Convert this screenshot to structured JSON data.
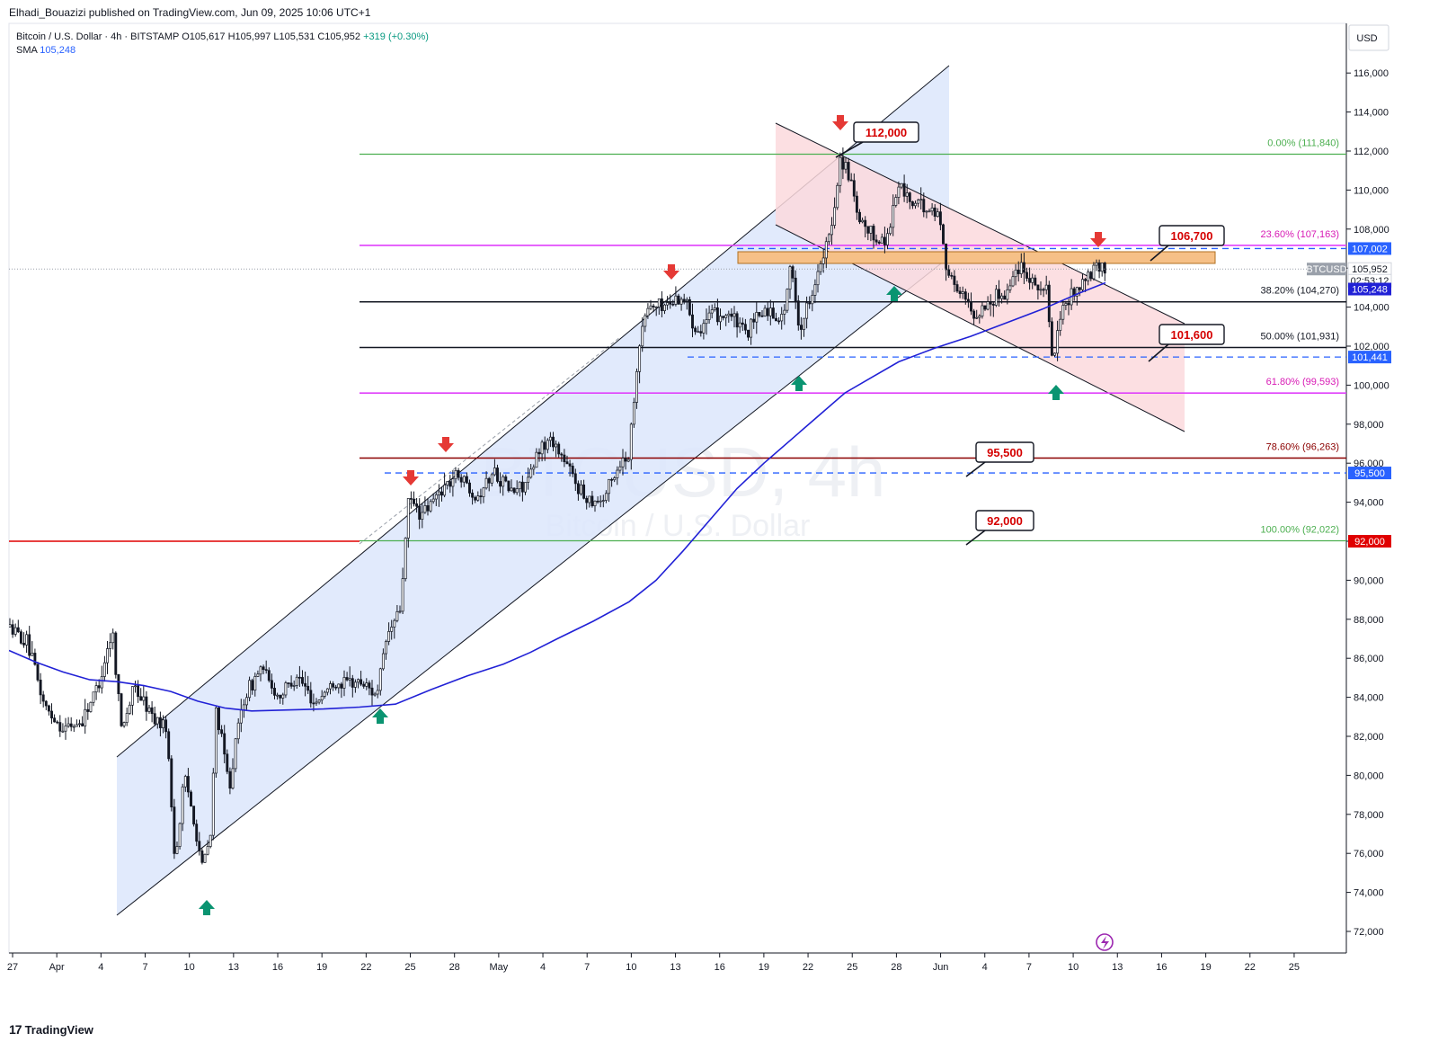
{
  "header": {
    "published": "Elhadi_Bouazizi published on TradingView.com, Jun 09, 2025 10:06 UTC+1",
    "symbol": "Bitcoin / U.S. Dollar · 4h · BITSTAMP",
    "open": "O105,617",
    "high": "H105,997",
    "low": "L105,531",
    "close": "C105,952",
    "change": "+319 (+0.30%)",
    "sma_label": "SMA",
    "sma_value": "105,248"
  },
  "watermark": {
    "ticker": "BTCUSD, 4h",
    "name": "Bitcoin / U.S. Dollar"
  },
  "footer": {
    "brand": "TradingView"
  },
  "colors": {
    "up": "#ffffff",
    "down": "#131722",
    "sma": "#2121d6",
    "fib0": "#4caf50",
    "fib236": "#e040fb",
    "fib382": "#131722",
    "fib786": "#8b0000",
    "red_line": "#e00000",
    "blue_dash": "#2962ff",
    "channel_fill": "#dce6fb",
    "bear_fill": "#fbd9dd",
    "zone_fill": "#f6c087",
    "arrow_red": "#e53935",
    "arrow_green": "#0a9471"
  },
  "chart_data": {
    "type": "candlestick",
    "currency": "USD",
    "y_ticks": [
      "72,000",
      "74,000",
      "76,000",
      "78,000",
      "80,000",
      "82,000",
      "84,000",
      "86,000",
      "88,000",
      "90,000",
      "92,000",
      "94,000",
      "96,000",
      "98,000",
      "100,000",
      "102,000",
      "104,000",
      "106,000",
      "108,000",
      "110,000",
      "112,000",
      "114,000",
      "116,000"
    ],
    "x_ticks": [
      "27",
      "Apr",
      "4",
      "7",
      "10",
      "13",
      "16",
      "19",
      "22",
      "25",
      "28",
      "May",
      "4",
      "7",
      "10",
      "13",
      "16",
      "19",
      "22",
      "25",
      "28",
      "Jun",
      "4",
      "7",
      "10",
      "13",
      "16",
      "19",
      "22",
      "25"
    ],
    "fib_levels": [
      {
        "label": "0.00% (111,840)",
        "value": 111840
      },
      {
        "label": "23.60% (107,163)",
        "value": 107163
      },
      {
        "label": "38.20% (104,270)",
        "value": 104270
      },
      {
        "label": "50.00% (101,931)",
        "value": 101931
      },
      {
        "label": "61.80% (99,593)",
        "value": 99593
      },
      {
        "label": "78.60% (96,263)",
        "value": 96263
      },
      {
        "label": "100.00% (92,022)",
        "value": 92022
      }
    ],
    "callouts": [
      {
        "label": "112,000",
        "value": 112000
      },
      {
        "label": "106,700",
        "value": 106700
      },
      {
        "label": "101,600",
        "value": 101600
      },
      {
        "label": "95,500",
        "value": 95500
      },
      {
        "label": "92,000",
        "value": 92000
      }
    ],
    "price_badges": [
      {
        "label": "107,002",
        "value": 107002
      },
      {
        "label": "BTCUSD",
        "value": 105952
      },
      {
        "label": "105,952",
        "value": 105952
      },
      {
        "label": "02:53:12",
        "value": 105952
      },
      {
        "label": "105,248",
        "value": 105248
      },
      {
        "label": "101,441",
        "value": 101441
      },
      {
        "label": "95,500",
        "value": 95500
      },
      {
        "label": "92,000",
        "value": 92000
      }
    ],
    "sma_points": [
      [
        10,
        86400
      ],
      [
        40,
        85800
      ],
      [
        70,
        85300
      ],
      [
        100,
        84900
      ],
      [
        130,
        84800
      ],
      [
        160,
        84600
      ],
      [
        190,
        84300
      ],
      [
        220,
        83800
      ],
      [
        250,
        83450
      ],
      [
        280,
        83300
      ],
      [
        320,
        83350
      ],
      [
        360,
        83400
      ],
      [
        400,
        83500
      ],
      [
        440,
        83650
      ],
      [
        480,
        84400
      ],
      [
        520,
        85100
      ],
      [
        560,
        85700
      ],
      [
        590,
        86300
      ],
      [
        620,
        87000
      ],
      [
        660,
        87900
      ],
      [
        700,
        88900
      ],
      [
        730,
        90000
      ],
      [
        760,
        91500
      ],
      [
        790,
        93100
      ],
      [
        820,
        94700
      ],
      [
        850,
        96000
      ],
      [
        880,
        97200
      ],
      [
        910,
        98400
      ],
      [
        940,
        99600
      ],
      [
        970,
        100400
      ],
      [
        1000,
        101200
      ],
      [
        1040,
        101900
      ],
      [
        1080,
        102500
      ],
      [
        1120,
        103200
      ],
      [
        1160,
        103900
      ],
      [
        1200,
        104700
      ],
      [
        1230,
        105250
      ]
    ],
    "price_path": [
      [
        10,
        87600
      ],
      [
        30,
        86800
      ],
      [
        50,
        83500
      ],
      [
        70,
        82400
      ],
      [
        90,
        82700
      ],
      [
        110,
        84700
      ],
      [
        125,
        87500
      ],
      [
        135,
        82500
      ],
      [
        150,
        84500
      ],
      [
        170,
        83000
      ],
      [
        185,
        82500
      ],
      [
        195,
        75500
      ],
      [
        205,
        80000
      ],
      [
        215,
        78000
      ],
      [
        225,
        75300
      ],
      [
        235,
        77000
      ],
      [
        240,
        83500
      ],
      [
        255,
        79500
      ],
      [
        270,
        83800
      ],
      [
        290,
        85500
      ],
      [
        310,
        84000
      ],
      [
        330,
        85200
      ],
      [
        350,
        83700
      ],
      [
        370,
        84700
      ],
      [
        400,
        84800
      ],
      [
        420,
        84200
      ],
      [
        430,
        87000
      ],
      [
        445,
        88500
      ],
      [
        455,
        94200
      ],
      [
        470,
        93300
      ],
      [
        490,
        94600
      ],
      [
        510,
        95500
      ],
      [
        530,
        94300
      ],
      [
        550,
        95600
      ],
      [
        570,
        94500
      ],
      [
        590,
        95200
      ],
      [
        600,
        96800
      ],
      [
        615,
        97200
      ],
      [
        630,
        95900
      ],
      [
        650,
        94300
      ],
      [
        670,
        94100
      ],
      [
        690,
        96000
      ],
      [
        700,
        96500
      ],
      [
        710,
        101800
      ],
      [
        720,
        104000
      ],
      [
        740,
        104100
      ],
      [
        760,
        104600
      ],
      [
        775,
        102800
      ],
      [
        790,
        103500
      ],
      [
        810,
        103700
      ],
      [
        830,
        102600
      ],
      [
        850,
        103900
      ],
      [
        870,
        103400
      ],
      [
        880,
        106000
      ],
      [
        890,
        102800
      ],
      [
        905,
        105100
      ],
      [
        915,
        106300
      ],
      [
        925,
        108000
      ],
      [
        935,
        111700
      ],
      [
        945,
        110700
      ],
      [
        955,
        108300
      ],
      [
        970,
        107700
      ],
      [
        985,
        107300
      ],
      [
        1000,
        110300
      ],
      [
        1015,
        109300
      ],
      [
        1030,
        109100
      ],
      [
        1045,
        108700
      ],
      [
        1055,
        105600
      ],
      [
        1070,
        104700
      ],
      [
        1085,
        103500
      ],
      [
        1100,
        104300
      ],
      [
        1120,
        104800
      ],
      [
        1135,
        106300
      ],
      [
        1150,
        105300
      ],
      [
        1165,
        104700
      ],
      [
        1172,
        100800
      ],
      [
        1180,
        103700
      ],
      [
        1195,
        104800
      ],
      [
        1210,
        105500
      ],
      [
        1222,
        106000
      ],
      [
        1230,
        105950
      ]
    ]
  }
}
